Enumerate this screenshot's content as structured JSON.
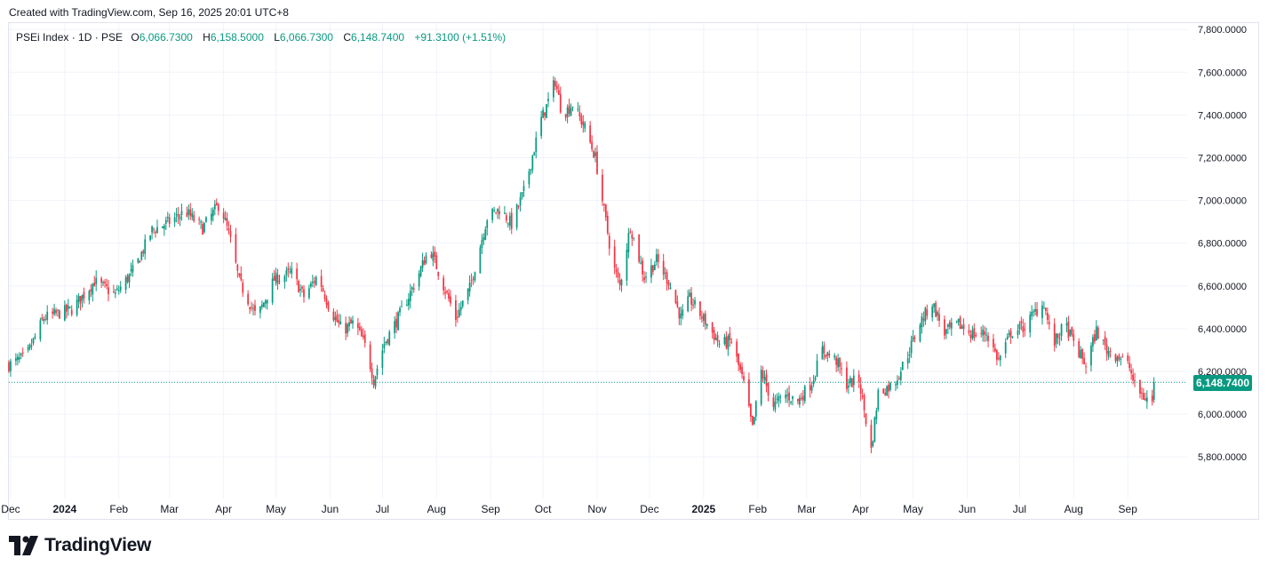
{
  "header": {
    "created_text": "Created with TradingView.com, Sep 16, 2025 20:01 UTC+8"
  },
  "legend": {
    "symbol": "PSEi Index · 1D · PSE",
    "o_label": "O",
    "o_value": "6,066.7300",
    "h_label": "H",
    "h_value": "6,158.5000",
    "l_label": "L",
    "l_value": "6,066.7300",
    "c_label": "C",
    "c_value": "6,148.7400",
    "change": "+91.3100 (+1.51%)"
  },
  "last_price_label": "6,148.7400",
  "brand": {
    "name": "TradingView"
  },
  "colors": {
    "up": "#089981",
    "down": "#f23645",
    "grid": "#f0f3fa",
    "text": "#131722",
    "axis_text": "#131722"
  },
  "chart_data": {
    "type": "candlestick",
    "interval": "1D",
    "ylim": [
      5630,
      7830
    ],
    "y_ticks": [
      5800,
      6000,
      6200,
      6400,
      6600,
      6800,
      7000,
      7200,
      7400,
      7600,
      7800
    ],
    "y_tick_labels": [
      "5,800.0000",
      "6,000.0000",
      "6,200.0000",
      "6,400.0000",
      "6,600.0000",
      "6,800.0000",
      "7,000.0000",
      "7,200.0000",
      "7,400.0000",
      "7,600.0000",
      "7,800.0000"
    ],
    "x_tick_labels": [
      {
        "t": "2023-12-01",
        "label": "Dec"
      },
      {
        "t": "2024-01-01",
        "label": "2024"
      },
      {
        "t": "2024-02-01",
        "label": "Feb"
      },
      {
        "t": "2024-03-01",
        "label": "Mar"
      },
      {
        "t": "2024-04-01",
        "label": "Apr"
      },
      {
        "t": "2024-05-01",
        "label": "May"
      },
      {
        "t": "2024-06-01",
        "label": "Jun"
      },
      {
        "t": "2024-07-01",
        "label": "Jul"
      },
      {
        "t": "2024-08-01",
        "label": "Aug"
      },
      {
        "t": "2024-09-01",
        "label": "Sep"
      },
      {
        "t": "2024-10-01",
        "label": "Oct"
      },
      {
        "t": "2024-11-01",
        "label": "Nov"
      },
      {
        "t": "2024-12-01",
        "label": "Dec"
      },
      {
        "t": "2025-01-01",
        "label": "2025"
      },
      {
        "t": "2025-02-01",
        "label": "Feb"
      },
      {
        "t": "2025-03-01",
        "label": "Mar"
      },
      {
        "t": "2025-04-01",
        "label": "Apr"
      },
      {
        "t": "2025-05-01",
        "label": "May"
      },
      {
        "t": "2025-06-01",
        "label": "Jun"
      },
      {
        "t": "2025-07-01",
        "label": "Jul"
      },
      {
        "t": "2025-08-01",
        "label": "Aug"
      },
      {
        "t": "2025-09-01",
        "label": "Sep"
      }
    ],
    "x_range": [
      "2023-11-30",
      "2025-10-05"
    ],
    "last_close": 6148.74,
    "grid": true,
    "close_path_approx": [
      [
        "2023-11-30",
        6230
      ],
      [
        "2023-12-10",
        6270
      ],
      [
        "2023-12-20",
        6450
      ],
      [
        "2024-01-05",
        6490
      ],
      [
        "2024-01-18",
        6620
      ],
      [
        "2024-01-30",
        6560
      ],
      [
        "2024-02-10",
        6680
      ],
      [
        "2024-02-20",
        6860
      ],
      [
        "2024-03-01",
        6900
      ],
      [
        "2024-03-10",
        6950
      ],
      [
        "2024-03-20",
        6870
      ],
      [
        "2024-03-30",
        6990
      ],
      [
        "2024-04-05",
        6810
      ],
      [
        "2024-04-10",
        6620
      ],
      [
        "2024-04-20",
        6450
      ],
      [
        "2024-04-30",
        6630
      ],
      [
        "2024-05-10",
        6660
      ],
      [
        "2024-05-17",
        6550
      ],
      [
        "2024-05-25",
        6650
      ],
      [
        "2024-06-01",
        6490
      ],
      [
        "2024-06-08",
        6390
      ],
      [
        "2024-06-15",
        6430
      ],
      [
        "2024-06-22",
        6300
      ],
      [
        "2024-06-26",
        6160
      ],
      [
        "2024-07-02",
        6330
      ],
      [
        "2024-07-10",
        6450
      ],
      [
        "2024-07-20",
        6620
      ],
      [
        "2024-07-28",
        6780
      ],
      [
        "2024-08-06",
        6580
      ],
      [
        "2024-08-12",
        6450
      ],
      [
        "2024-08-20",
        6590
      ],
      [
        "2024-08-30",
        6920
      ],
      [
        "2024-09-06",
        6960
      ],
      [
        "2024-09-13",
        6890
      ],
      [
        "2024-09-20",
        7040
      ],
      [
        "2024-09-30",
        7380
      ],
      [
        "2024-10-03",
        7440
      ],
      [
        "2024-10-08",
        7560
      ],
      [
        "2024-10-12",
        7400
      ],
      [
        "2024-10-18",
        7450
      ],
      [
        "2024-10-25",
        7340
      ],
      [
        "2024-10-31",
        7200
      ],
      [
        "2024-11-05",
        6950
      ],
      [
        "2024-11-10",
        6700
      ],
      [
        "2024-11-14",
        6600
      ],
      [
        "2024-11-20",
        6880
      ],
      [
        "2024-11-28",
        6640
      ],
      [
        "2024-12-05",
        6720
      ],
      [
        "2024-12-12",
        6620
      ],
      [
        "2024-12-19",
        6450
      ],
      [
        "2024-12-24",
        6540
      ],
      [
        "2025-01-03",
        6420
      ],
      [
        "2025-01-10",
        6330
      ],
      [
        "2025-01-17",
        6340
      ],
      [
        "2025-01-24",
        6140
      ],
      [
        "2025-01-29",
        5930
      ],
      [
        "2025-02-03",
        6200
      ],
      [
        "2025-02-10",
        6040
      ],
      [
        "2025-02-17",
        6090
      ],
      [
        "2025-02-24",
        6060
      ],
      [
        "2025-03-04",
        6150
      ],
      [
        "2025-03-10",
        6300
      ],
      [
        "2025-03-18",
        6250
      ],
      [
        "2025-03-24",
        6140
      ],
      [
        "2025-03-31",
        6160
      ],
      [
        "2025-04-07",
        5830
      ],
      [
        "2025-04-11",
        6100
      ],
      [
        "2025-04-20",
        6140
      ],
      [
        "2025-04-28",
        6280
      ],
      [
        "2025-05-05",
        6430
      ],
      [
        "2025-05-12",
        6520
      ],
      [
        "2025-05-19",
        6380
      ],
      [
        "2025-05-27",
        6420
      ],
      [
        "2025-06-05",
        6370
      ],
      [
        "2025-06-12",
        6380
      ],
      [
        "2025-06-19",
        6250
      ],
      [
        "2025-06-26",
        6380
      ],
      [
        "2025-07-04",
        6410
      ],
      [
        "2025-07-10",
        6480
      ],
      [
        "2025-07-15",
        6520
      ],
      [
        "2025-07-20",
        6320
      ],
      [
        "2025-07-27",
        6420
      ],
      [
        "2025-08-03",
        6300
      ],
      [
        "2025-08-08",
        6230
      ],
      [
        "2025-08-14",
        6390
      ],
      [
        "2025-08-20",
        6300
      ],
      [
        "2025-08-27",
        6270
      ],
      [
        "2025-09-02",
        6220
      ],
      [
        "2025-09-05",
        6130
      ],
      [
        "2025-09-10",
        6080
      ],
      [
        "2025-09-15",
        6060
      ],
      [
        "2025-09-16",
        6148.74
      ]
    ]
  }
}
